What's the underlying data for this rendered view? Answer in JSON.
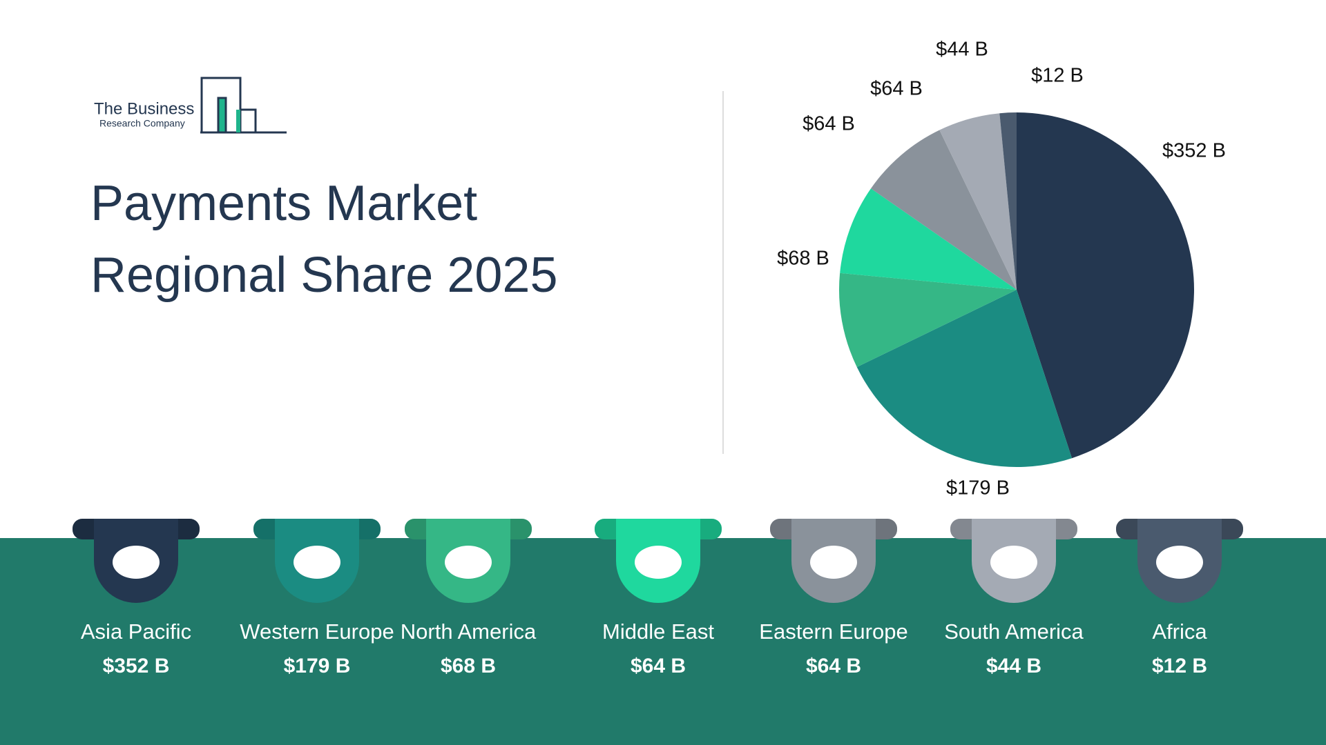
{
  "logo": {
    "line1": "The Business",
    "line2": "Research Company"
  },
  "chart_data": {
    "type": "pie",
    "title": "Payments Market",
    "subtitle": "Regional Share 2025",
    "categories": [
      "Asia Pacific",
      "Western Europe",
      "North America",
      "Middle East",
      "Eastern Europe",
      "South America",
      "Africa"
    ],
    "values": [
      352,
      179,
      68,
      64,
      64,
      44,
      12
    ],
    "value_labels": [
      "$352 B",
      "$179 B",
      "$68 B",
      "$64 B",
      "$64 B",
      "$44 B",
      "$12 B"
    ],
    "colors": [
      "#243750",
      "#1b8c82",
      "#35b786",
      "#1fd89e",
      "#8a929b",
      "#a4aab4",
      "#4a5a6e"
    ]
  }
}
